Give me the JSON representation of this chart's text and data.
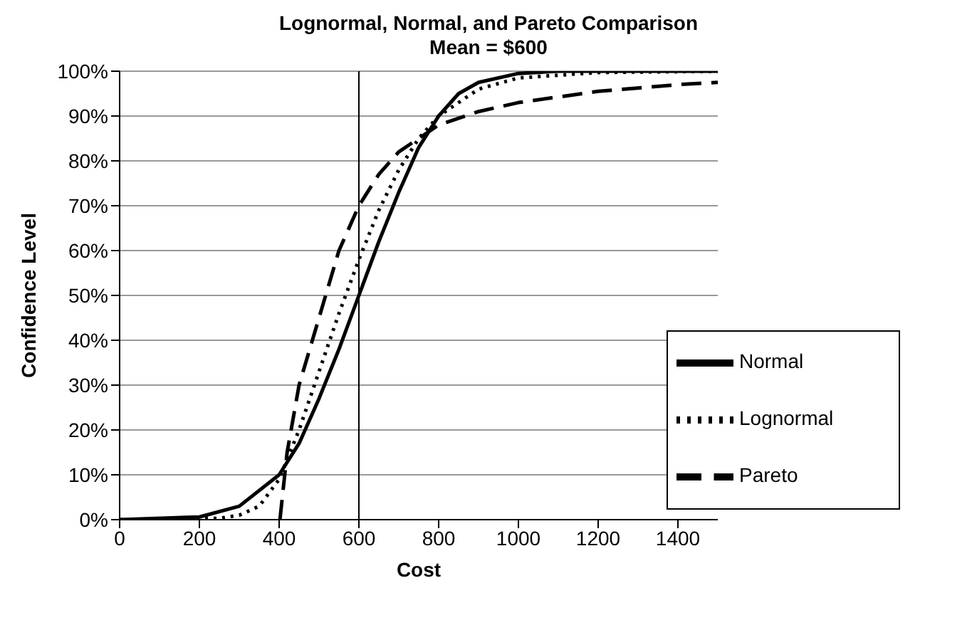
{
  "chart_data": {
    "type": "line",
    "title": "Lognormal, Normal, and Pareto Comparison",
    "subtitle": "Mean = $600",
    "xlabel": "Cost",
    "ylabel": "Confidence Level",
    "xlim": [
      0,
      1500
    ],
    "xticks": [
      0,
      200,
      400,
      600,
      800,
      1000,
      1200,
      1400
    ],
    "ylim": [
      0,
      100
    ],
    "yticks": [
      {
        "value": 0,
        "label": "0%"
      },
      {
        "value": 10,
        "label": "10%"
      },
      {
        "value": 20,
        "label": "20%"
      },
      {
        "value": 30,
        "label": "30%"
      },
      {
        "value": 40,
        "label": "40%"
      },
      {
        "value": 50,
        "label": "50%"
      },
      {
        "value": 60,
        "label": "60%"
      },
      {
        "value": 70,
        "label": "70%"
      },
      {
        "value": 80,
        "label": "80%"
      },
      {
        "value": 90,
        "label": "90%"
      },
      {
        "value": 100,
        "label": "100%"
      }
    ],
    "grid": "y",
    "legend": "right",
    "marker": "none",
    "ref_lines": [
      {
        "axis": "x",
        "value": 600,
        "color": "#000000"
      }
    ],
    "series": [
      {
        "name": "Normal",
        "color": "#000000",
        "line_style": "solid",
        "x": [
          0,
          200,
          300,
          400,
          450,
          500,
          550,
          600,
          650,
          700,
          750,
          800,
          850,
          900,
          1000,
          1100,
          1500
        ],
        "values": [
          0,
          0.6,
          3,
          10,
          17,
          27,
          38,
          50,
          62,
          73,
          83,
          90,
          95,
          97.5,
          99.5,
          100,
          100
        ]
      },
      {
        "name": "Lognormal",
        "color": "#000000",
        "line_style": "dotted",
        "x": [
          0,
          250,
          300,
          350,
          400,
          450,
          500,
          550,
          600,
          650,
          700,
          750,
          800,
          900,
          1000,
          1200,
          1500
        ],
        "values": [
          0,
          0.3,
          1,
          3,
          9,
          20,
          33,
          46,
          58,
          69,
          78,
          85,
          90,
          96,
          98.5,
          99.7,
          100
        ]
      },
      {
        "name": "Pareto",
        "color": "#000000",
        "line_style": "dashed",
        "x": [
          402,
          420,
          450,
          500,
          550,
          600,
          650,
          700,
          750,
          800,
          900,
          1000,
          1200,
          1400,
          1500
        ],
        "values": [
          0,
          15,
          30,
          45,
          60,
          70,
          77,
          82,
          85,
          88,
          91,
          93,
          95.5,
          97,
          97.5
        ]
      }
    ]
  }
}
